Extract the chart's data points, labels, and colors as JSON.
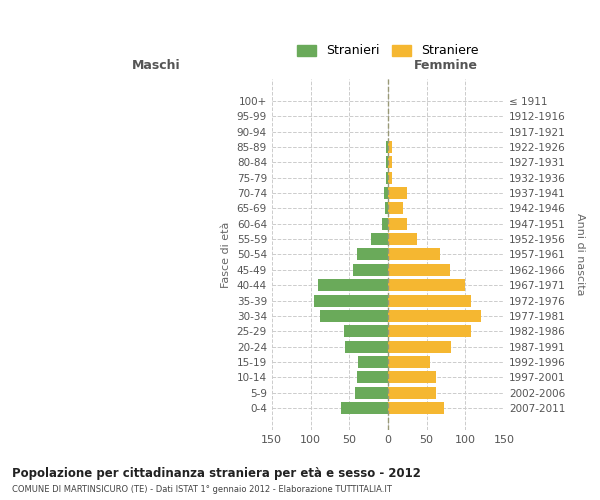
{
  "age_groups_bottom_to_top": [
    "0-4",
    "5-9",
    "10-14",
    "15-19",
    "20-24",
    "25-29",
    "30-34",
    "35-39",
    "40-44",
    "45-49",
    "50-54",
    "55-59",
    "60-64",
    "65-69",
    "70-74",
    "75-79",
    "80-84",
    "85-89",
    "90-94",
    "95-99",
    "100+"
  ],
  "birth_years_bottom_to_top": [
    "2007-2011",
    "2002-2006",
    "1997-2001",
    "1992-1996",
    "1987-1991",
    "1982-1986",
    "1977-1981",
    "1972-1976",
    "1967-1971",
    "1962-1966",
    "1957-1961",
    "1952-1956",
    "1947-1951",
    "1942-1946",
    "1937-1941",
    "1932-1936",
    "1927-1931",
    "1922-1926",
    "1917-1921",
    "1912-1916",
    "≤ 1911"
  ],
  "maschi_bottom_to_top": [
    60,
    43,
    40,
    38,
    55,
    57,
    88,
    95,
    90,
    45,
    40,
    22,
    7,
    4,
    5,
    3,
    3,
    2,
    0,
    0,
    0
  ],
  "femmine_bottom_to_top": [
    73,
    62,
    62,
    55,
    82,
    107,
    120,
    107,
    100,
    80,
    67,
    38,
    25,
    20,
    25,
    5,
    5,
    5,
    0,
    0,
    0
  ],
  "color_maschi": "#6aaa5a",
  "color_femmine": "#f5b731",
  "background_color": "#ffffff",
  "grid_color": "#cccccc",
  "title": "Popolazione per cittadinanza straniera per età e sesso - 2012",
  "subtitle": "COMUNE DI MARTINSICURO (TE) - Dati ISTAT 1° gennaio 2012 - Elaborazione TUTTITALIA.IT",
  "label_maschi": "Maschi",
  "label_femmine": "Femmine",
  "ylabel_left": "Fasce di età",
  "ylabel_right": "Anni di nascita",
  "legend_stranieri": "Stranieri",
  "legend_straniere": "Straniere",
  "xlim": 150,
  "dashed_line_color": "#999977"
}
